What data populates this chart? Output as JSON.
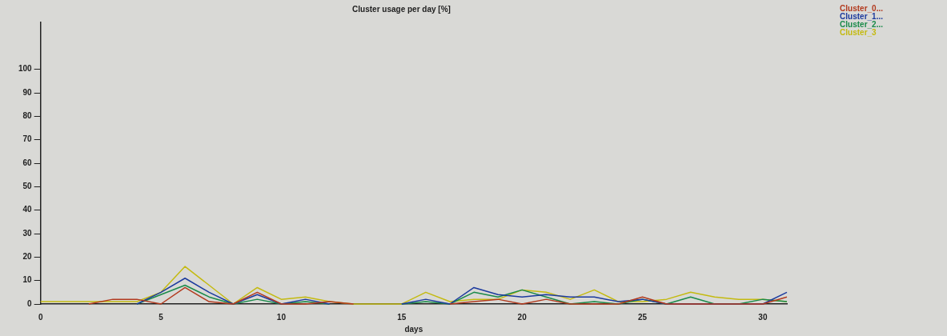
{
  "chart_data": {
    "type": "line",
    "title": "Cluster usage per day [%]",
    "xlabel": "days",
    "x": [
      0,
      1,
      2,
      3,
      4,
      5,
      6,
      7,
      8,
      9,
      10,
      11,
      12,
      13,
      14,
      15,
      16,
      17,
      18,
      19,
      20,
      21,
      22,
      23,
      24,
      25,
      26,
      27,
      28,
      29,
      30,
      31
    ],
    "xlim": [
      0,
      31
    ],
    "xticks": [
      0,
      5,
      10,
      15,
      20,
      25,
      30
    ],
    "ylim": [
      0,
      120
    ],
    "yticks": [
      0,
      10,
      20,
      30,
      40,
      50,
      60,
      70,
      80,
      90,
      100
    ],
    "grid": false,
    "legend": "top right",
    "marker": "none",
    "line_style": "solid",
    "series": [
      {
        "name": "Cluster_0...",
        "color": "#b23a1e",
        "values": [
          null,
          null,
          0,
          2,
          2,
          0,
          7,
          1,
          0,
          5,
          0,
          0,
          1,
          0,
          null,
          null,
          null,
          0,
          1,
          2,
          0,
          2,
          0,
          0,
          0,
          3,
          0,
          0,
          0,
          0,
          0,
          3
        ]
      },
      {
        "name": "Cluster_1...",
        "color": "#1c3a9e",
        "values": [
          null,
          null,
          null,
          null,
          0,
          5,
          11,
          5,
          0,
          4,
          0,
          2,
          0,
          null,
          null,
          0,
          2,
          0,
          7,
          4,
          3,
          4,
          3,
          3,
          1,
          2,
          0,
          0,
          0,
          0,
          0,
          5
        ]
      },
      {
        "name": "Cluster_2...",
        "color": "#1a8a4a",
        "values": [
          null,
          null,
          null,
          null,
          0,
          4,
          8,
          3,
          0,
          2,
          0,
          1,
          0,
          null,
          null,
          0,
          1,
          0,
          5,
          3,
          6,
          3,
          0,
          1,
          0,
          2,
          0,
          3,
          0,
          0,
          2,
          1
        ]
      },
      {
        "name": "Cluster_3",
        "color": "#c4ba10",
        "values": [
          1,
          1,
          1,
          1,
          1,
          5,
          16,
          8,
          0,
          7,
          2,
          3,
          1,
          0,
          0,
          0,
          5,
          1,
          2,
          2,
          6,
          5,
          2,
          6,
          1,
          1,
          2,
          5,
          3,
          2,
          2,
          1
        ]
      }
    ]
  }
}
